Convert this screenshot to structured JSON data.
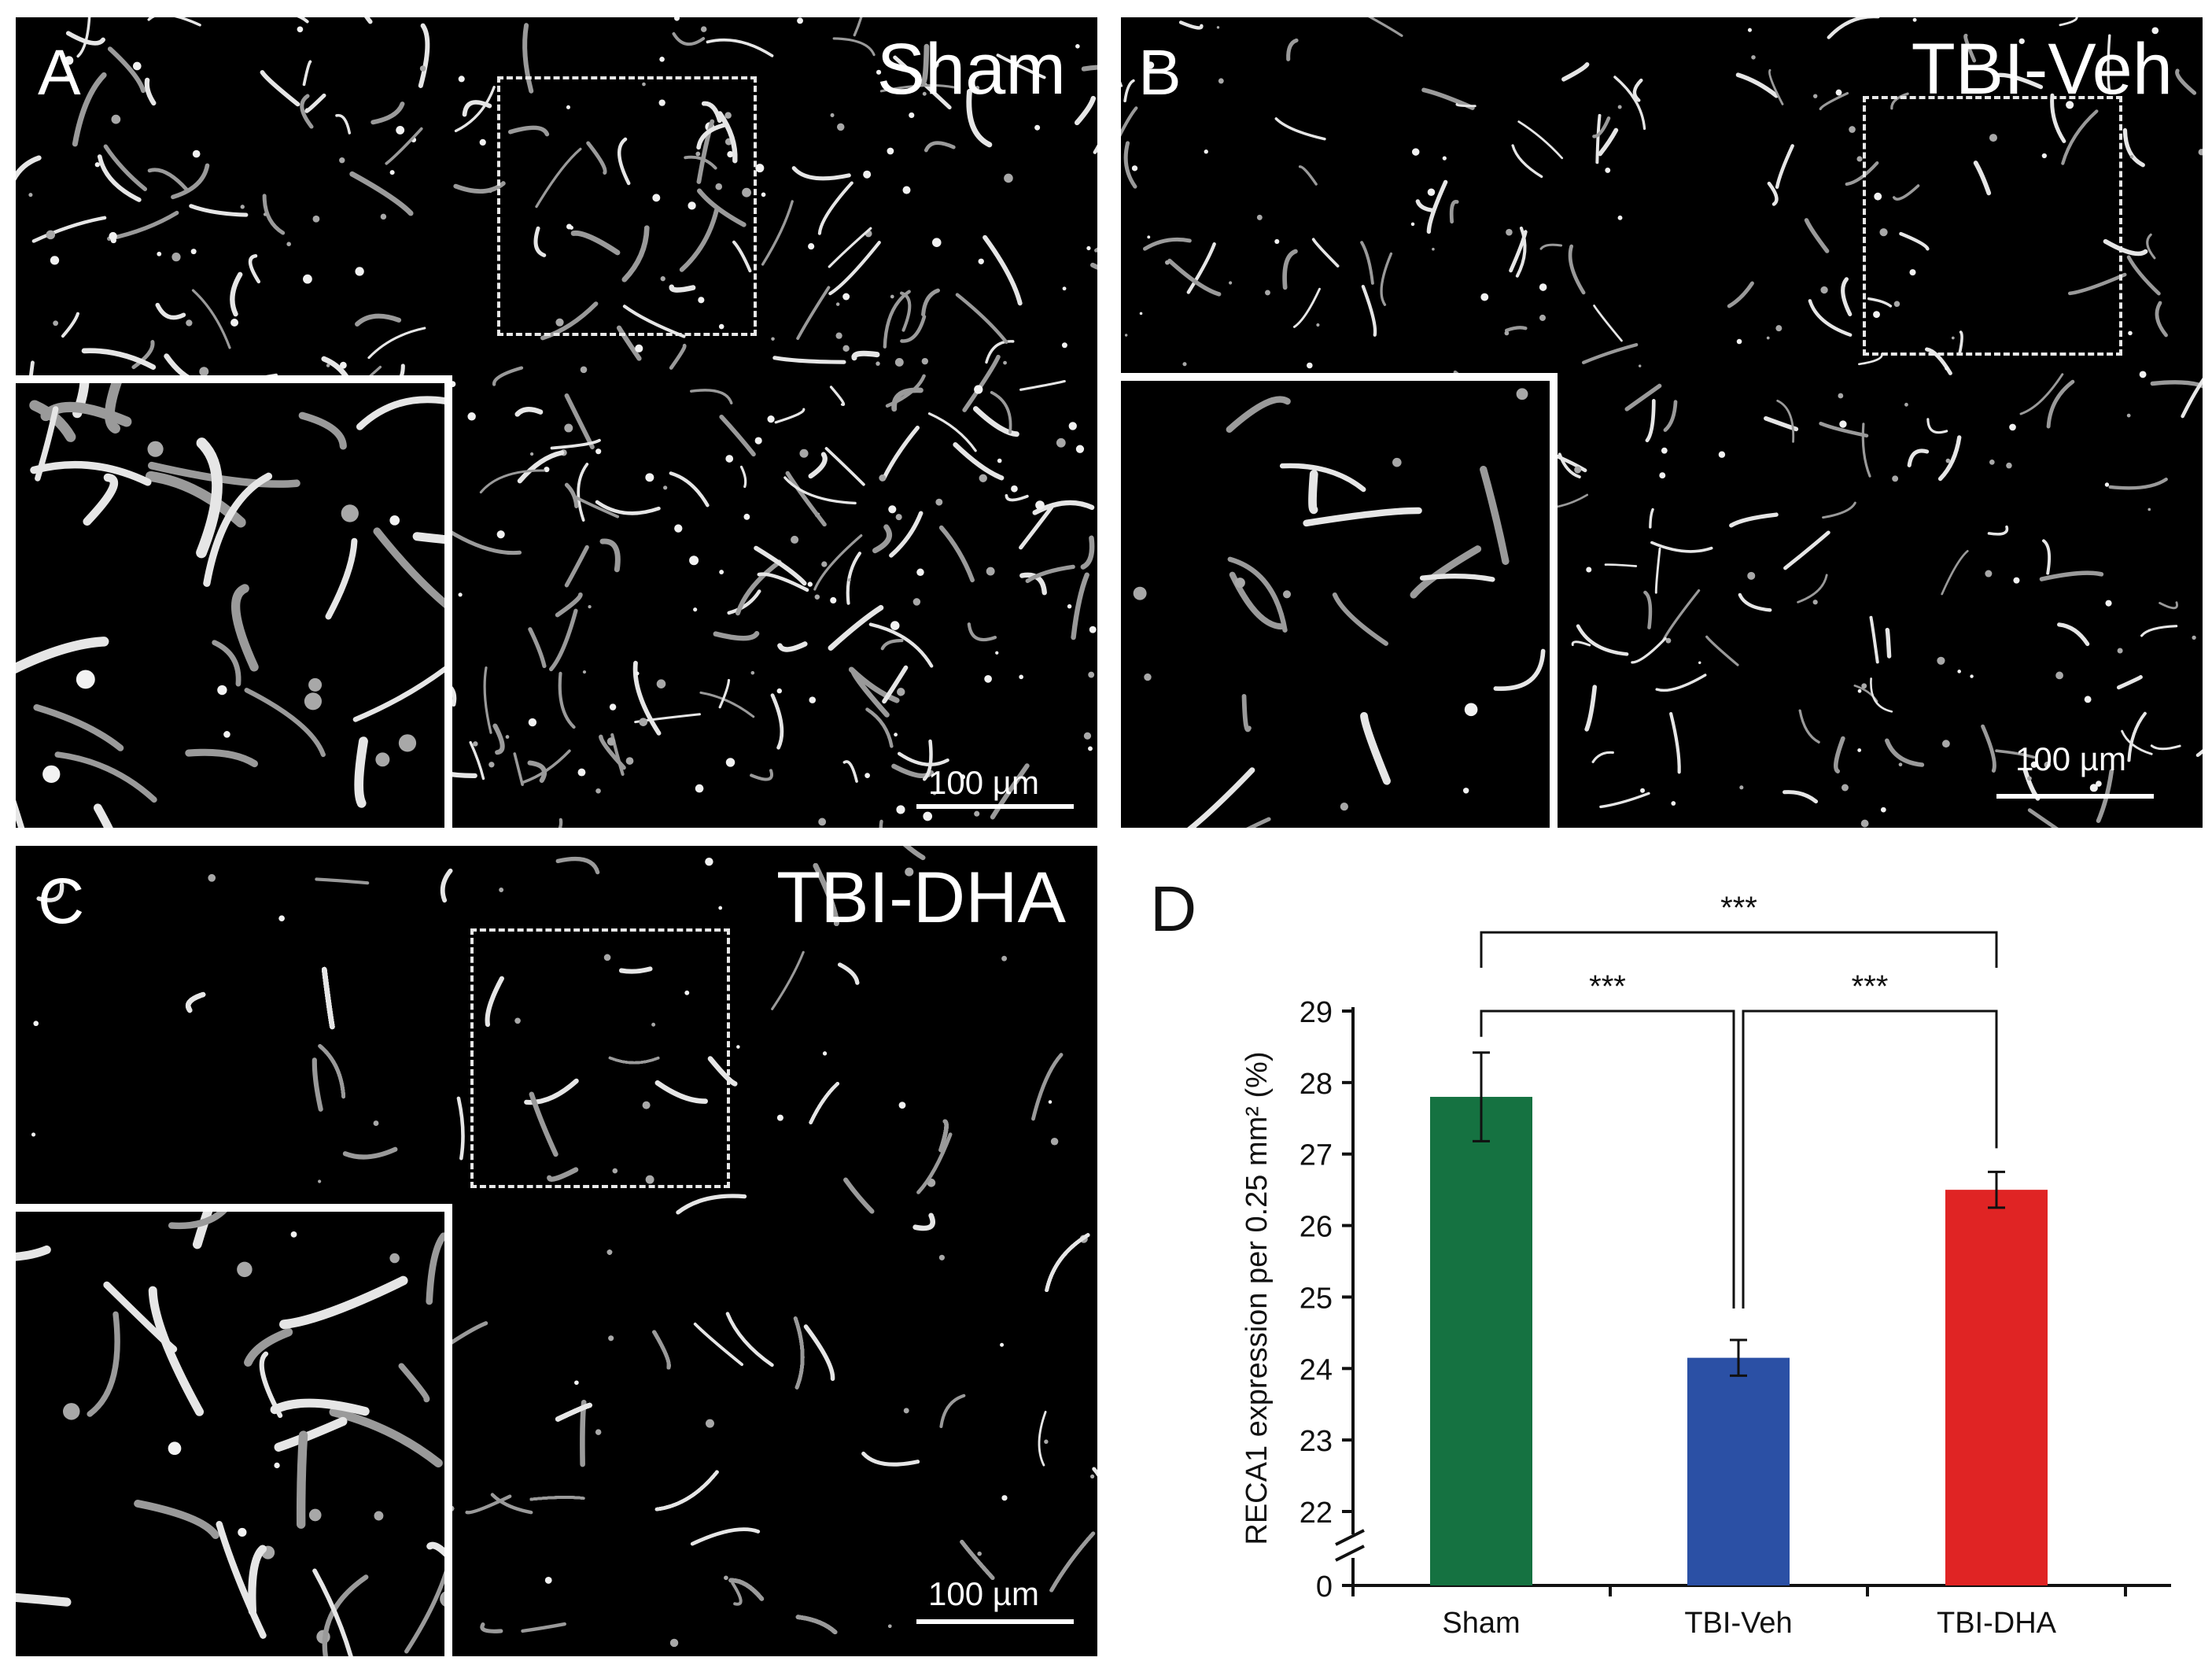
{
  "panels": [
    {
      "id": "A",
      "condition": "Sham",
      "scalebar": "100 µm"
    },
    {
      "id": "B",
      "condition": "TBI-Veh",
      "scalebar": "100 µm"
    },
    {
      "id": "C",
      "condition": "TBI-DHA",
      "scalebar": "100 µm"
    }
  ],
  "chart_panel_label": "D",
  "chart_data": {
    "type": "bar",
    "categories": [
      "Sham",
      "TBI-Veh",
      "TBI-DHA"
    ],
    "values": [
      27.8,
      24.15,
      26.5
    ],
    "errors": [
      0.62,
      0.25,
      0.25
    ],
    "colors": [
      "#157241",
      "#2b50a5",
      "#e02424"
    ],
    "ylabel": "RECA1 expression per 0.25 mm² (%)",
    "ylim": [
      22,
      29
    ],
    "axis_break": true,
    "yticks": [
      "0",
      "22",
      "23",
      "24",
      "25",
      "26",
      "27",
      "28",
      "29"
    ],
    "significance": [
      {
        "from": "Sham",
        "to": "TBI-DHA",
        "label": "***"
      },
      {
        "from": "Sham",
        "to": "TBI-Veh",
        "label": "***"
      },
      {
        "from": "TBI-Veh",
        "to": "TBI-DHA",
        "label": "***"
      }
    ]
  }
}
